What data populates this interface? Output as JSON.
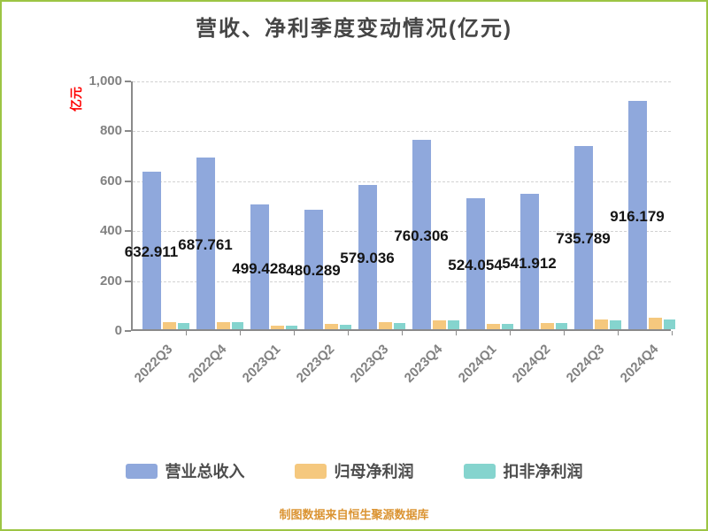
{
  "chart": {
    "title": "营收、净利季度变动情况(亿元)",
    "y_unit": "亿元",
    "source_note": "制图数据来自恒生聚源数据库"
  },
  "colors": {
    "frame_border": "#9DC544",
    "title_text": "#454545",
    "axis_line": "#8A8A8A",
    "tick_label_text": "#828282",
    "gridline": "#D2D2D2",
    "bar_value_label_text": "#141414",
    "y_unit_text": "#FF0000",
    "legend_label_text": "#4D4D4D",
    "source_note_text": "#DB9433",
    "series_revenue": "#8FA8DC",
    "series_net_profit": "#F5C87E",
    "series_deducted_net_profit": "#85D4CE"
  },
  "chart_data": {
    "type": "bar",
    "title": "营收、净利季度变动情况(亿元)",
    "xlabel": "",
    "ylabel": "亿元",
    "categories": [
      "2022Q3",
      "2022Q4",
      "2023Q1",
      "2023Q2",
      "2023Q3",
      "2023Q4",
      "2024Q1",
      "2024Q2",
      "2024Q3",
      "2024Q4"
    ],
    "series": [
      {
        "key": "revenue",
        "name": "营业总收入",
        "color": "#8FA8DC",
        "values": [
          632.911,
          687.761,
          499.428,
          480.289,
          579.036,
          760.306,
          524.054,
          541.912,
          735.789,
          916.179
        ],
        "data_labels": [
          "632.911",
          "687.761",
          "499.428",
          "480.289",
          "579.036",
          "760.306",
          "524.054",
          "541.912",
          "735.789",
          "916.179"
        ],
        "labels_shown": true
      },
      {
        "key": "net-profit",
        "name": "归母净利润",
        "color": "#F5C87E",
        "values": [
          28,
          30,
          16,
          20,
          27,
          36,
          23,
          26,
          38,
          46
        ],
        "labels_shown": false
      },
      {
        "key": "deducted-net-profit",
        "name": "扣非净利润",
        "color": "#85D4CE",
        "values": [
          26,
          27,
          14,
          19,
          25,
          34,
          22,
          25,
          36,
          39
        ],
        "labels_shown": false
      }
    ],
    "ylim": [
      0,
      1000
    ],
    "yticks": [
      {
        "value": 0,
        "label": "0"
      },
      {
        "value": 200,
        "label": "200"
      },
      {
        "value": 400,
        "label": "400"
      },
      {
        "value": 600,
        "label": "600"
      },
      {
        "value": 800,
        "label": "800"
      },
      {
        "value": 1000,
        "label": "1,000"
      }
    ],
    "grid": "horizontal-dashed",
    "legend_position": "bottom",
    "value_label_position": "inside-center"
  }
}
